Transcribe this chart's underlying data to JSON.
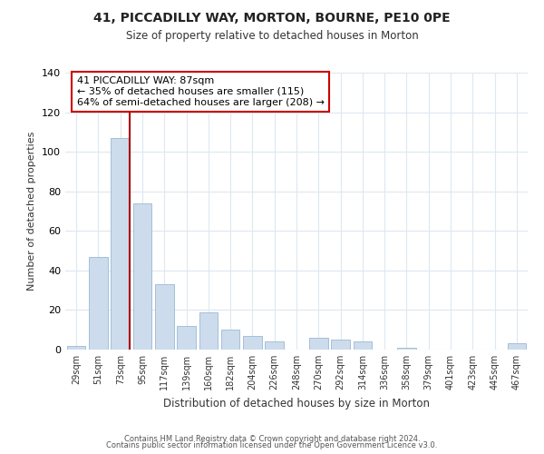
{
  "title": "41, PICCADILLY WAY, MORTON, BOURNE, PE10 0PE",
  "subtitle": "Size of property relative to detached houses in Morton",
  "xlabel": "Distribution of detached houses by size in Morton",
  "ylabel": "Number of detached properties",
  "bar_color": "#ccdcec",
  "bar_edge_color": "#9ab8d4",
  "categories": [
    "29sqm",
    "51sqm",
    "73sqm",
    "95sqm",
    "117sqm",
    "139sqm",
    "160sqm",
    "182sqm",
    "204sqm",
    "226sqm",
    "248sqm",
    "270sqm",
    "292sqm",
    "314sqm",
    "336sqm",
    "358sqm",
    "379sqm",
    "401sqm",
    "423sqm",
    "445sqm",
    "467sqm"
  ],
  "values": [
    2,
    47,
    107,
    74,
    33,
    12,
    19,
    10,
    7,
    4,
    0,
    6,
    5,
    4,
    0,
    1,
    0,
    0,
    0,
    0,
    3
  ],
  "ylim": [
    0,
    140
  ],
  "yticks": [
    0,
    20,
    40,
    60,
    80,
    100,
    120,
    140
  ],
  "property_line_bar_index": 2,
  "property_line_color": "#aa0000",
  "annotation_line1": "41 PICCADILLY WAY: 87sqm",
  "annotation_line2": "← 35% of detached houses are smaller (115)",
  "annotation_line3": "64% of semi-detached houses are larger (208) →",
  "annotation_box_color": "#ffffff",
  "annotation_box_edge": "#cc0000",
  "footnote1": "Contains HM Land Registry data © Crown copyright and database right 2024.",
  "footnote2": "Contains public sector information licensed under the Open Government Licence v3.0.",
  "background_color": "#ffffff",
  "grid_color": "#dde8f0"
}
